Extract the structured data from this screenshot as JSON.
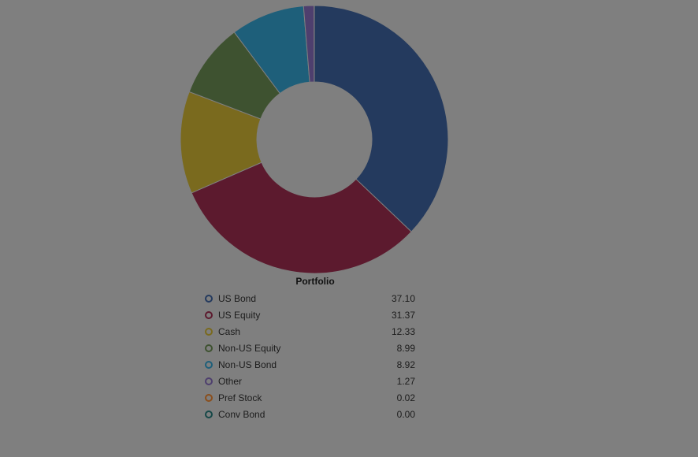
{
  "chart_data": {
    "type": "pie",
    "subtype": "donut",
    "title": "Portfolio",
    "legend_position": "bottom",
    "slices": [
      {
        "name": "US Bond",
        "value": 37.1,
        "value_label": "37.10",
        "color": "#243a5e"
      },
      {
        "name": "US Equity",
        "value": 31.37,
        "value_label": "31.37",
        "color": "#5c1a2e"
      },
      {
        "name": "Cash",
        "value": 12.33,
        "value_label": "12.33",
        "color": "#7a6a1e"
      },
      {
        "name": "Non-US Equity",
        "value": 8.99,
        "value_label": "8.99",
        "color": "#3e5230"
      },
      {
        "name": "Non-US Bond",
        "value": 8.92,
        "value_label": "8.92",
        "color": "#1e5f7a"
      },
      {
        "name": "Other",
        "value": 1.27,
        "value_label": "1.27",
        "color": "#4e3f6e"
      },
      {
        "name": "Pref Stock",
        "value": 0.02,
        "value_label": "0.02",
        "color": "#8a4e1c"
      },
      {
        "name": "Conv Bond",
        "value": 0.0,
        "value_label": "0.00",
        "color": "#164848"
      }
    ]
  }
}
